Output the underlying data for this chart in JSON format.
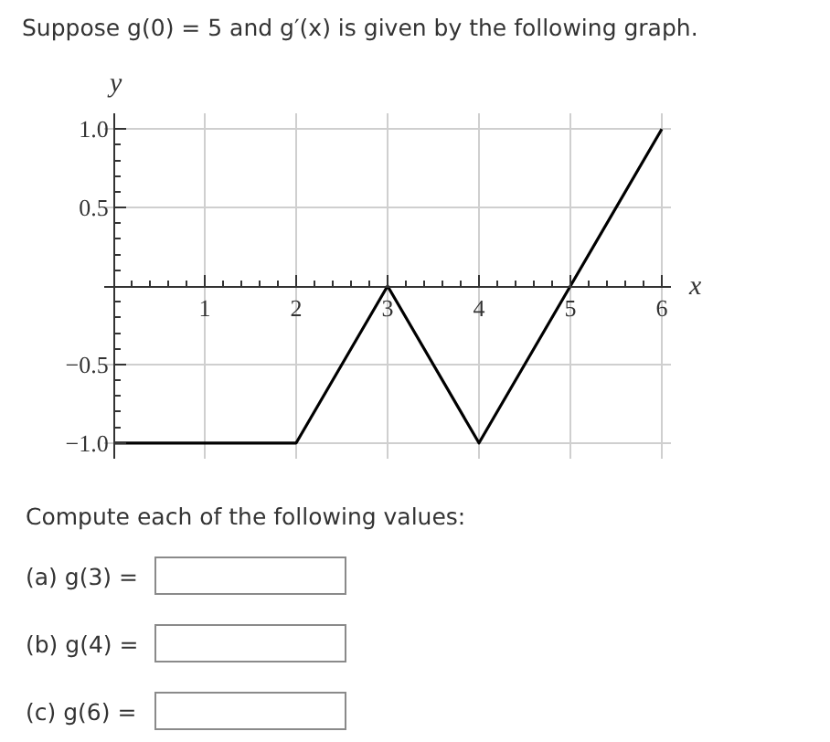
{
  "chart_data": {
    "type": "line",
    "title": "Suppose g(0) = 5 and g′(x) is given by the following graph.",
    "xlabel": "x",
    "ylabel": "y",
    "x": [
      0,
      2,
      3,
      4,
      5,
      6
    ],
    "series": [
      {
        "color": "#000000",
        "values": [
          -1,
          -1,
          0,
          -1,
          0,
          1
        ]
      }
    ],
    "xlim": [
      -0.1,
      6.1
    ],
    "ylim": [
      -1.1,
      1.1
    ],
    "xticks": [
      {
        "value": 0.2,
        "label": null
      },
      {
        "value": 0.4,
        "label": null
      },
      {
        "value": 0.6,
        "label": null
      },
      {
        "value": 0.8,
        "label": null
      },
      1,
      {
        "value": 1.2,
        "label": null
      },
      {
        "value": 1.4,
        "label": null
      },
      {
        "value": 1.6,
        "label": null
      },
      {
        "value": 1.8,
        "label": null
      },
      2,
      {
        "value": 2.2,
        "label": null
      },
      {
        "value": 2.4,
        "label": null
      },
      {
        "value": 2.6,
        "label": null
      },
      {
        "value": 2.8,
        "label": null
      },
      3,
      {
        "value": 3.2,
        "label": null
      },
      {
        "value": 3.4,
        "label": null
      },
      {
        "value": 3.6,
        "label": null
      },
      {
        "value": 3.8,
        "label": null
      },
      4,
      {
        "value": 4.2,
        "label": null
      },
      {
        "value": 4.4,
        "label": null
      },
      {
        "value": 4.6,
        "label": null
      },
      {
        "value": 4.8,
        "label": null
      },
      5,
      {
        "value": 5.2,
        "label": null
      },
      {
        "value": 5.4,
        "label": null
      },
      {
        "value": 5.6,
        "label": null
      },
      {
        "value": 5.8,
        "label": null
      },
      6
    ],
    "yticks": [
      {
        "value": -1,
        "label": "−1.0"
      },
      {
        "value": -0.9,
        "label": null
      },
      {
        "value": -0.8,
        "label": null
      },
      {
        "value": -0.7,
        "label": null
      },
      {
        "value": -0.6,
        "label": null
      },
      {
        "value": -0.5,
        "label": "−0.5"
      },
      {
        "value": -0.4,
        "label": null
      },
      {
        "value": -0.3,
        "label": null
      },
      {
        "value": -0.2,
        "label": null
      },
      {
        "value": -0.1,
        "label": null
      },
      {
        "value": 0.1,
        "label": null
      },
      {
        "value": 0.2,
        "label": null
      },
      {
        "value": 0.3,
        "label": null
      },
      {
        "value": 0.4,
        "label": null
      },
      0.5,
      {
        "value": 0.6,
        "label": null
      },
      {
        "value": 0.7,
        "label": null
      },
      {
        "value": 0.8,
        "label": null
      },
      {
        "value": 0.9,
        "label": null
      },
      {
        "value": 1,
        "label": "1.0"
      }
    ],
    "grid": true,
    "marker": "none",
    "line_style": "solid",
    "annotations": [
      "Compute each of the following values:",
      "(a) g(3) =",
      "(b) g(4) =",
      "(c) g(6) ="
    ]
  }
}
